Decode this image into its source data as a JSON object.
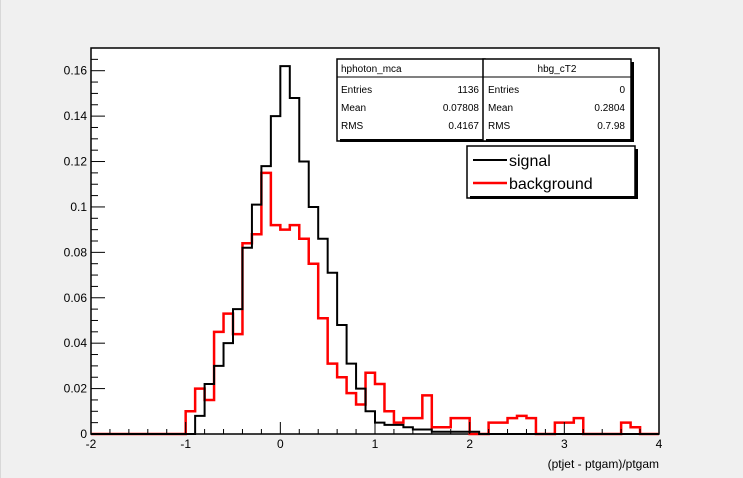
{
  "chart_data": {
    "type": "histogram",
    "title": "",
    "xlabel": "(ptjet - ptgam)/ptgam",
    "ylabel": "",
    "xlim": [
      -2,
      4
    ],
    "ylim": [
      0,
      0.17
    ],
    "grid": false,
    "bin_width": 0.1,
    "bin_start": -2.0,
    "x_ticks": [
      "-2",
      "-1",
      "0",
      "1",
      "2",
      "3",
      "4"
    ],
    "y_ticks": [
      "0",
      "0.02",
      "0.04",
      "0.06",
      "0.08",
      "0.1",
      "0.12",
      "0.14",
      "0.16"
    ],
    "legend": {
      "placement": "top-right",
      "entries": [
        "signal",
        "background"
      ]
    },
    "series": [
      {
        "name": "signal",
        "color": "#000000",
        "values": [
          0,
          0,
          0,
          0,
          0,
          0,
          0,
          0,
          0,
          0,
          0,
          0.008,
          0.022,
          0.03,
          0.04,
          0.055,
          0.082,
          0.101,
          0.118,
          0.14,
          0.162,
          0.148,
          0.12,
          0.1,
          0.086,
          0.071,
          0.048,
          0.031,
          0.02,
          0.01,
          0.005,
          0.004,
          0.004,
          0.003,
          0.002,
          0.002,
          0.001,
          0.001,
          0.001,
          0.001,
          0.001,
          0,
          0,
          0,
          0,
          0,
          0,
          0,
          0,
          0,
          0,
          0,
          0,
          0,
          0,
          0,
          0,
          0,
          0,
          0
        ]
      },
      {
        "name": "background",
        "color": "#ff0000",
        "values": [
          0,
          0,
          0,
          0,
          0,
          0,
          0,
          0,
          0,
          0,
          0.01,
          0.02,
          0.015,
          0.045,
          0.053,
          0.044,
          0.084,
          0.088,
          0.115,
          0.092,
          0.09,
          0.092,
          0.086,
          0.075,
          0.051,
          0.031,
          0.025,
          0.018,
          0.013,
          0.027,
          0.022,
          0.01,
          0.005,
          0.007,
          0.007,
          0.017,
          0.003,
          0.003,
          0.007,
          0.007,
          0.0,
          0.0,
          0.005,
          0.005,
          0.007,
          0.008,
          0.007,
          0.0,
          0.0,
          0.005,
          0.005,
          0.007,
          0.0,
          0.0,
          0.0,
          0.0,
          0.005,
          0.003,
          0.0,
          0.0
        ]
      }
    ],
    "stat_boxes": [
      {
        "name": "hphoton_mca",
        "rows": [
          {
            "label": "Entries",
            "value": "1136"
          },
          {
            "label": "Mean",
            "value": "0.07808"
          },
          {
            "label": "RMS",
            "value": "0.4167"
          }
        ]
      },
      {
        "name": "hbg_cT2",
        "rows": [
          {
            "label": "Entries",
            "value": "0"
          },
          {
            "label": "Mean",
            "value": "0.2804"
          },
          {
            "label": "RMS",
            "value": "0.7.98"
          }
        ]
      }
    ]
  }
}
